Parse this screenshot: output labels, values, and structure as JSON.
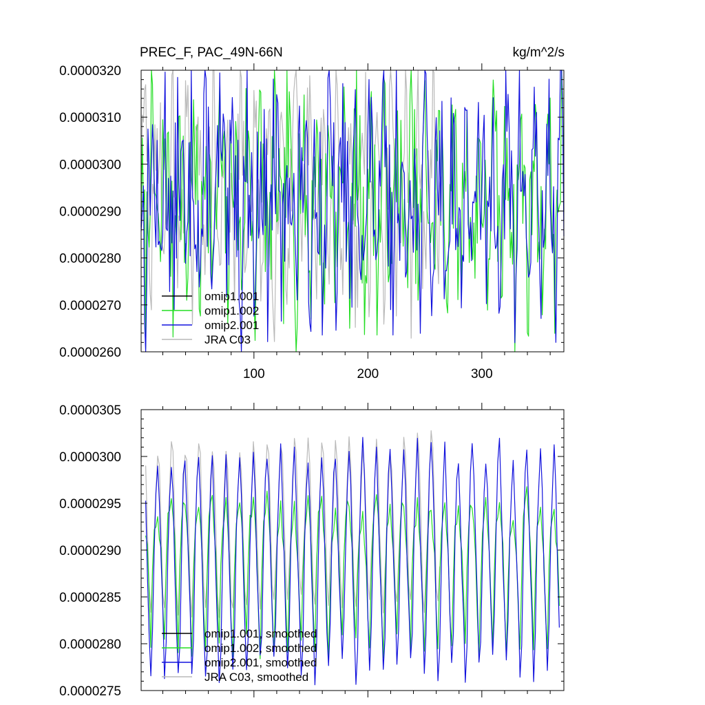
{
  "colors": {
    "omip1_001": "#000000",
    "omip1_002": "#22dd22",
    "omip2_001": "#1111dd",
    "jra_c03": "#b9b9b9"
  },
  "chart_data": [
    {
      "type": "line",
      "title_left": "PREC_F, PAC_49N-66N",
      "title_right": "kg/m^2/s",
      "xlim": [
        1,
        372
      ],
      "ylim": [
        2.6e-05,
        3.2e-05
      ],
      "x_ticks": [
        100,
        200,
        300
      ],
      "x_tick_labels": [
        "100",
        "200",
        "300"
      ],
      "y_ticks": [
        2.6e-05,
        2.7e-05,
        2.8e-05,
        2.9e-05,
        3e-05,
        3.1e-05,
        3.2e-05
      ],
      "y_tick_labels": [
        "0.0000260",
        "0.0000270",
        "0.0000280",
        "0.0000290",
        "0.0000300",
        "0.0000310",
        "0.0000320"
      ],
      "legend": {
        "placement": "bottom-left",
        "entries": [
          "omip1.001",
          "omip1.002",
          "omip2.001",
          "JRA C03"
        ]
      },
      "series": [
        {
          "name": "omip1.001",
          "color_key": "omip1_001",
          "x_start": 1,
          "x_end": 372,
          "kind": "raw",
          "hidden_under": "omip1.002",
          "values": []
        },
        {
          "name": "omip1.002",
          "color_key": "omip1_002",
          "x_start": 1,
          "x_end": 372,
          "kind": "raw",
          "annual_cycle": [
            2.955e-05,
            2.915e-05,
            2.87e-05,
            2.8e-05,
            2.76e-05,
            2.82e-05,
            2.905e-05,
            2.975e-05,
            3.035e-05,
            3.06e-05,
            3.01e-05,
            2.98e-05
          ],
          "noise_amplitude": 1.7e-06,
          "seed": 7
        },
        {
          "name": "omip2.001",
          "color_key": "omip2_001",
          "x_start": 1,
          "x_end": 372,
          "kind": "raw",
          "annual_cycle": [
            2.955e-05,
            2.915e-05,
            2.87e-05,
            2.8e-05,
            2.76e-05,
            2.82e-05,
            2.905e-05,
            2.975e-05,
            3.035e-05,
            3.06e-05,
            3.01e-05,
            2.98e-05
          ],
          "noise_amplitude": 1.9e-06,
          "seed": 13
        },
        {
          "name": "JRA C03",
          "color_key": "jra_c03",
          "x_start": 1,
          "x_end": 264,
          "kind": "raw",
          "annual_cycle": [
            2.96e-05,
            2.99e-05,
            3.04e-05,
            3.09e-05,
            3.11e-05,
            3.06e-05,
            2.96e-05,
            2.86e-05,
            2.79e-05,
            2.76e-05,
            2.83e-05,
            2.91e-05
          ],
          "noise_amplitude": 1.4e-06,
          "seed": 29
        }
      ]
    },
    {
      "type": "line",
      "xlim": [
        1,
        372
      ],
      "ylim": [
        2.75e-05,
        3.05e-05
      ],
      "x_ticks": [
        100,
        200,
        300
      ],
      "y_ticks": [
        2.75e-05,
        2.8e-05,
        2.85e-05,
        2.9e-05,
        2.95e-05,
        3e-05,
        3.05e-05
      ],
      "y_tick_labels": [
        "0.0000275",
        "0.0000280",
        "0.0000285",
        "0.0000290",
        "0.0000295",
        "0.0000300",
        "0.0000305"
      ],
      "legend": {
        "placement": "bottom-left",
        "entries": [
          "omip1.001, smoothed",
          "omip1.002, smoothed",
          "omip2.001, smoothed",
          "JRA C03, smoothed"
        ]
      },
      "series": [
        {
          "name": "omip1.001, smoothed",
          "color_key": "omip1_001",
          "x_start": 5,
          "x_end": 368,
          "kind": "smoothed",
          "hidden_under": "omip1.002, smoothed",
          "values": []
        },
        {
          "name": "omip1.002, smoothed",
          "color_key": "omip1_002",
          "x_start": 5,
          "x_end": 368,
          "kind": "smoothed",
          "annual_cycle": [
            2.925e-05,
            2.935e-05,
            2.945e-05,
            2.955e-05,
            2.94e-05,
            2.925e-05,
            2.915e-05,
            2.905e-05,
            2.88e-05,
            2.85e-05,
            2.82e-05,
            2.79e-05,
            2.81e-05,
            2.86e-05,
            2.905e-05,
            2.925e-05
          ],
          "noise_amplitude": 2.5e-07,
          "seed": 41
        },
        {
          "name": "omip2.001, smoothed",
          "color_key": "omip2_001",
          "x_start": 5,
          "x_end": 368,
          "kind": "smoothed",
          "annual_cycle": [
            2.92e-05,
            2.96e-05,
            3e-05,
            3.01e-05,
            2.995e-05,
            2.97e-05,
            2.94e-05,
            2.9e-05,
            2.87e-05,
            2.84e-05,
            2.81e-05,
            2.775e-05,
            2.765e-05,
            2.79e-05,
            2.85e-05,
            2.9e-05
          ],
          "noise_amplitude": 3e-07,
          "seed": 53
        },
        {
          "name": "JRA C03, smoothed",
          "color_key": "jra_c03",
          "x_start": 5,
          "x_end": 264,
          "kind": "smoothed",
          "annual_cycle": [
            2.93e-05,
            2.96e-05,
            2.99e-05,
            3.01e-05,
            3.02e-05,
            3.005e-05,
            2.975e-05,
            2.94e-05,
            2.9e-05,
            2.87e-05,
            2.845e-05,
            2.835e-05,
            2.85e-05,
            2.88e-05,
            2.9e-05,
            2.915e-05
          ],
          "noise_amplitude": 2e-07,
          "seed": 67
        }
      ]
    }
  ]
}
